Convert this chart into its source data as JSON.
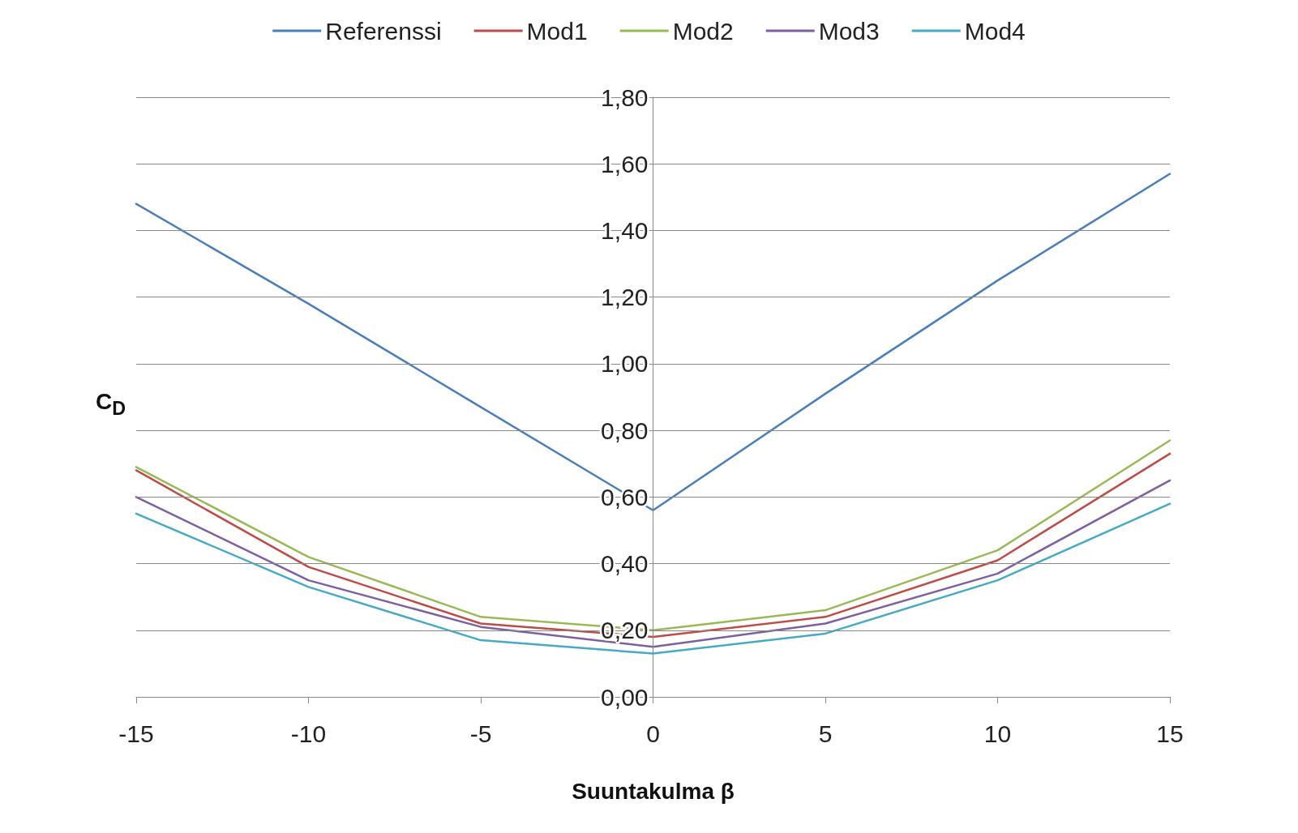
{
  "chart_data": {
    "type": "line",
    "xlabel": "Suuntakulma β",
    "ylabel": "C$_{D}$",
    "x": [
      -15,
      -10,
      -5,
      0,
      5,
      10,
      15
    ],
    "series": [
      {
        "name": "Referenssi",
        "color": "#4a7ebb",
        "values": [
          1.48,
          1.18,
          0.87,
          0.56,
          0.91,
          1.25,
          1.57
        ]
      },
      {
        "name": "Mod1",
        "color": "#be4b48",
        "values": [
          0.68,
          0.39,
          0.22,
          0.18,
          0.24,
          0.41,
          0.73
        ]
      },
      {
        "name": "Mod2",
        "color": "#98b954",
        "values": [
          0.69,
          0.42,
          0.24,
          0.2,
          0.26,
          0.44,
          0.77
        ]
      },
      {
        "name": "Mod3",
        "color": "#7d60a0",
        "values": [
          0.6,
          0.35,
          0.21,
          0.15,
          0.22,
          0.37,
          0.65
        ]
      },
      {
        "name": "Mod4",
        "color": "#46aac5",
        "values": [
          0.55,
          0.33,
          0.17,
          0.13,
          0.19,
          0.35,
          0.58
        ]
      }
    ],
    "xlim": [
      -15,
      15
    ],
    "xticks": [
      -15,
      -10,
      -5,
      0,
      5,
      10,
      15
    ],
    "ylim": [
      0,
      1.8
    ],
    "yticks": [
      {
        "value": 0,
        "label": "0,00"
      },
      {
        "value": 0.2,
        "label": "0,20"
      },
      {
        "value": 0.4,
        "label": "0,40"
      },
      {
        "value": 0.6,
        "label": "0,60"
      },
      {
        "value": 0.8,
        "label": "0,80"
      },
      {
        "value": 1.0,
        "label": "1,00"
      },
      {
        "value": 1.2,
        "label": "1,20"
      },
      {
        "value": 1.4,
        "label": "1,40"
      },
      {
        "value": 1.6,
        "label": "1,60"
      },
      {
        "value": 1.8,
        "label": "1,80"
      }
    ],
    "grid": "y",
    "legend": "top",
    "marker": "none",
    "line_style": "solid"
  }
}
